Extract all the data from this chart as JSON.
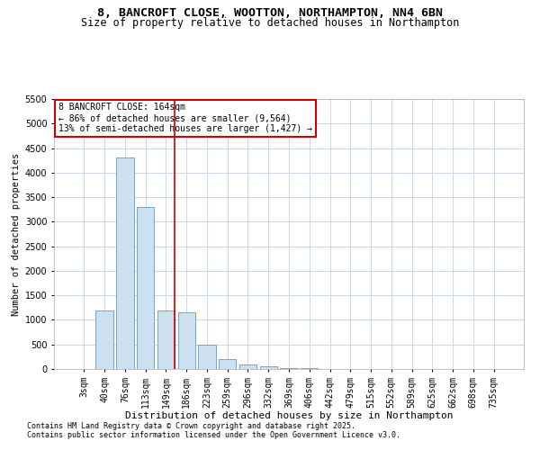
{
  "title1": "8, BANCROFT CLOSE, WOOTTON, NORTHAMPTON, NN4 6BN",
  "title2": "Size of property relative to detached houses in Northampton",
  "xlabel": "Distribution of detached houses by size in Northampton",
  "ylabel": "Number of detached properties",
  "categories": [
    "3sqm",
    "40sqm",
    "76sqm",
    "113sqm",
    "149sqm",
    "186sqm",
    "223sqm",
    "259sqm",
    "296sqm",
    "332sqm",
    "369sqm",
    "406sqm",
    "442sqm",
    "479sqm",
    "515sqm",
    "552sqm",
    "589sqm",
    "625sqm",
    "662sqm",
    "698sqm",
    "735sqm"
  ],
  "values": [
    0,
    1200,
    4300,
    3300,
    1200,
    1150,
    500,
    200,
    100,
    50,
    20,
    10,
    5,
    3,
    2,
    2,
    1,
    1,
    0,
    0,
    0
  ],
  "bar_color": "#cce0f0",
  "bar_edge_color": "#5b9bd5",
  "annotation_text": "8 BANCROFT CLOSE: 164sqm\n← 86% of detached houses are smaller (9,564)\n13% of semi-detached houses are larger (1,427) →",
  "annotation_box_color": "#ffffff",
  "annotation_border_color": "#cc0000",
  "ylim": [
    0,
    5500
  ],
  "yticks": [
    0,
    500,
    1000,
    1500,
    2000,
    2500,
    3000,
    3500,
    4000,
    4500,
    5000,
    5500
  ],
  "footnote1": "Contains HM Land Registry data © Crown copyright and database right 2025.",
  "footnote2": "Contains public sector information licensed under the Open Government Licence v3.0.",
  "background_color": "#ffffff",
  "grid_color": "#c8d8eb",
  "title1_fontsize": 9.5,
  "title2_fontsize": 8.5,
  "xlabel_fontsize": 8,
  "ylabel_fontsize": 7.5,
  "tick_fontsize": 7,
  "annotation_fontsize": 7,
  "footnote_fontsize": 6
}
